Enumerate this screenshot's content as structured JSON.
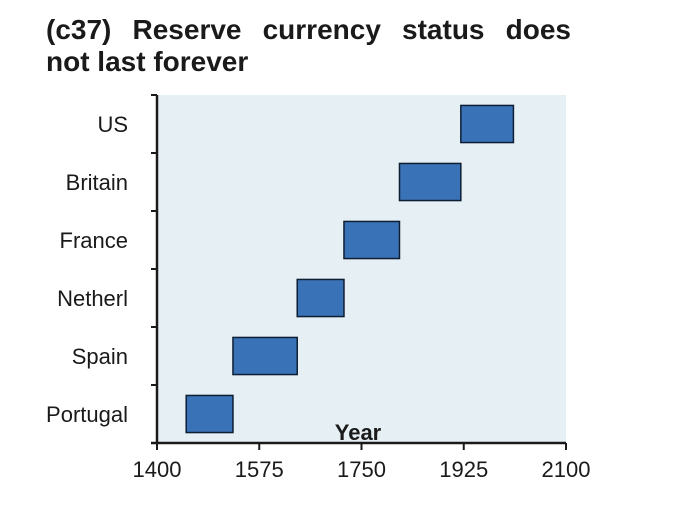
{
  "chart_data": {
    "type": "bar",
    "orientation": "horizontal-floating",
    "title_lines": [
      "(c37) Reserve currency status does",
      "not last forever"
    ],
    "xlabel": "Year",
    "ylabel": "",
    "xlim": [
      1400,
      2100
    ],
    "xticks": [
      "1400",
      "1575",
      "1750",
      "1925",
      "2100"
    ],
    "categories": [
      "Portugal",
      "Spain",
      "Netherl",
      "France",
      "Britain",
      "US"
    ],
    "series": [
      {
        "ranges": [
          [
            1450,
            1530
          ],
          [
            1530,
            1640
          ],
          [
            1640,
            1720
          ],
          [
            1720,
            1815
          ],
          [
            1815,
            1920
          ],
          [
            1920,
            2010
          ]
        ]
      }
    ],
    "grid": false,
    "colors": {
      "bar_fill": "#3a72b8",
      "bar_stroke": "#0e1e33",
      "plot_bg": "#e6eff4",
      "axis": "#1a1a1a"
    }
  }
}
